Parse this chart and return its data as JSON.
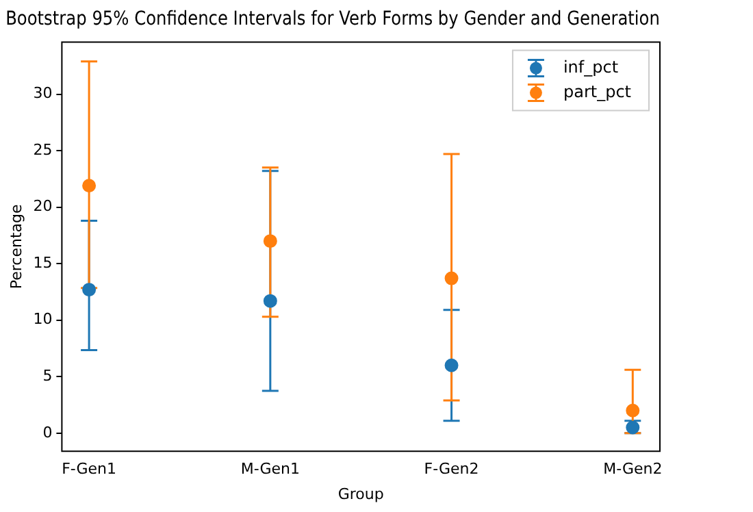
{
  "chart_data": {
    "type": "scatter",
    "title": "Bootstrap 95% Confidence Intervals for Verb Forms by Gender and Generation",
    "xlabel": "Group",
    "ylabel": "Percentage",
    "categories": [
      "F-Gen1",
      "M-Gen1",
      "F-Gen2",
      "M-Gen2"
    ],
    "series": [
      {
        "name": "inf_pct",
        "color": "#1f77b4",
        "values": [
          12.7,
          11.7,
          6.0,
          0.5
        ],
        "errors": [
          [
            7.35,
            18.8
          ],
          [
            3.75,
            23.2
          ],
          [
            1.1,
            10.9
          ],
          [
            0.0,
            1.1
          ]
        ]
      },
      {
        "name": "part_pct",
        "color": "#ff7f0e",
        "values": [
          21.9,
          17.0,
          13.7,
          2.0
        ],
        "errors": [
          [
            12.85,
            32.9
          ],
          [
            10.3,
            23.5
          ],
          [
            2.9,
            24.7
          ],
          [
            0.0,
            5.6
          ]
        ]
      }
    ],
    "ylim": [
      -1.6,
      34.6
    ],
    "yticks": [
      0,
      5,
      10,
      15,
      20,
      25,
      30
    ],
    "grid": false,
    "legend": "top right",
    "marker": "circle"
  }
}
